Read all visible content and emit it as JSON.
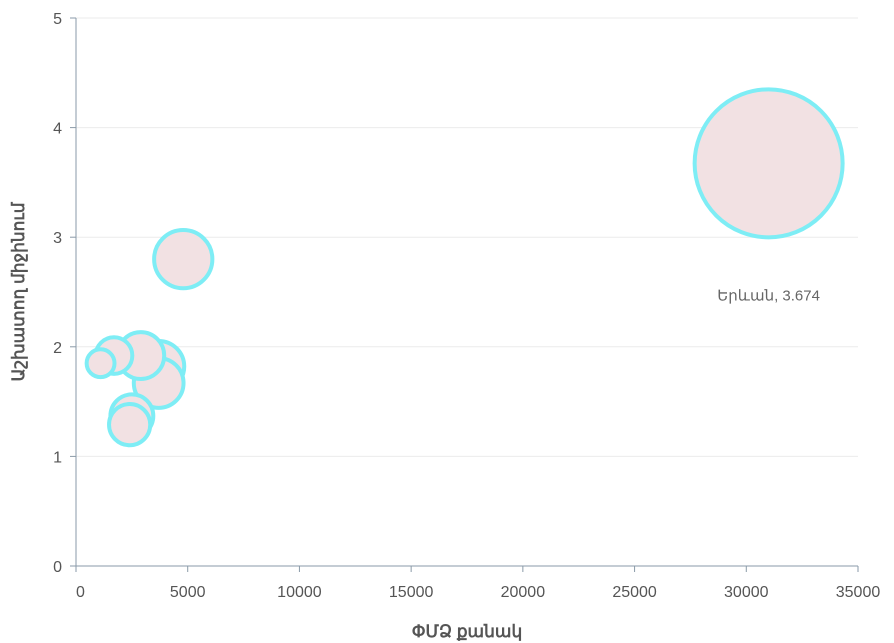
{
  "chart_data": {
    "type": "bubble",
    "xlabel": "ՓՄՁ քանակ",
    "ylabel": "Աշխատող միջինում",
    "xlim": [
      0,
      35000
    ],
    "ylim": [
      0,
      5
    ],
    "x_ticks": [
      0,
      5000,
      10000,
      15000,
      20000,
      25000,
      30000,
      35000
    ],
    "y_ticks": [
      0,
      1,
      2,
      3,
      4,
      5
    ],
    "grid": "horizontal",
    "colors": {
      "fill": "#f2e1e3",
      "stroke": "#7eedf5",
      "grid": "#ebebeb",
      "axis": "#8a9aa8"
    },
    "points": [
      {
        "x": 31000,
        "y": 3.674,
        "size": 31000,
        "label": "Երևան, 3.674"
      },
      {
        "x": 4800,
        "y": 2.8,
        "size": 4800,
        "label": ""
      },
      {
        "x": 3700,
        "y": 1.82,
        "size": 3700,
        "label": ""
      },
      {
        "x": 3700,
        "y": 1.67,
        "size": 3500,
        "label": ""
      },
      {
        "x": 2900,
        "y": 1.92,
        "size": 3100,
        "label": ""
      },
      {
        "x": 1700,
        "y": 1.92,
        "size": 1900,
        "label": ""
      },
      {
        "x": 1100,
        "y": 1.85,
        "size": 1100,
        "label": ""
      },
      {
        "x": 2500,
        "y": 1.37,
        "size": 2600,
        "label": ""
      },
      {
        "x": 2400,
        "y": 1.29,
        "size": 2400,
        "label": ""
      }
    ]
  }
}
